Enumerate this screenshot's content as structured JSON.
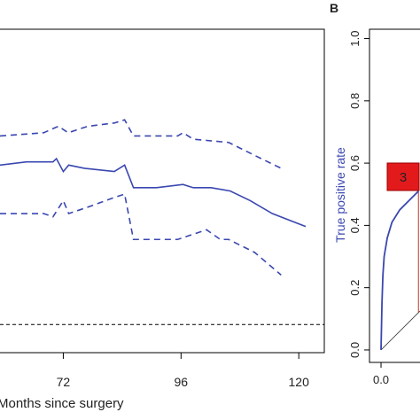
{
  "chart_data": [
    {
      "type": "line",
      "xlabel": "Months since surgery",
      "xlim": [
        59.1,
        125.2
      ],
      "xticks": [
        72,
        96,
        120
      ],
      "ylim": [
        0,
        1
      ],
      "series": [
        {
          "color": "#3a47b0",
          "dash": false,
          "x": [
            59.1,
            64.5,
            69.9,
            70.6,
            72,
            73.1,
            76.3,
            82.4,
            84.5,
            86.3,
            91,
            96.4,
            98.5,
            102.1,
            106,
            110.1,
            114.6,
            121.4
          ],
          "values": [
            0.58,
            0.59,
            0.59,
            0.6,
            0.56,
            0.58,
            0.57,
            0.56,
            0.58,
            0.51,
            0.51,
            0.52,
            0.51,
            0.51,
            0.5,
            0.47,
            0.43,
            0.39
          ]
        },
        {
          "color": "#3a47b0",
          "dash": true,
          "x": [
            59.1,
            68,
            71,
            73,
            77,
            82.4,
            84.5,
            86.3,
            95.3,
            96.4,
            98.5,
            105.7,
            111,
            116.4
          ],
          "values": [
            0.67,
            0.68,
            0.7,
            0.68,
            0.7,
            0.71,
            0.72,
            0.67,
            0.67,
            0.68,
            0.66,
            0.65,
            0.61,
            0.57
          ]
        },
        {
          "color": "#3a47b0",
          "dash": true,
          "x": [
            59.1,
            68,
            69.9,
            72,
            73.1,
            77,
            82.4,
            84.5,
            86.3,
            95.3,
            101.2,
            104,
            105.7,
            111,
            116.4
          ],
          "values": [
            0.43,
            0.43,
            0.42,
            0.47,
            0.43,
            0.45,
            0.48,
            0.49,
            0.35,
            0.35,
            0.38,
            0.35,
            0.35,
            0.31,
            0.24
          ]
        }
      ],
      "reference_line": {
        "value": 0.087,
        "color": "#000000"
      }
    },
    {
      "type": "roc",
      "panel": "B",
      "ylabel": "True positive rate",
      "ylabel_color": "#3a47b0",
      "xlim": [
        -0.037,
        0.125
      ],
      "xticks": [
        {
          "value": 0,
          "label": "0.0"
        }
      ],
      "ylim": [
        -0.04,
        1.03
      ],
      "yticks": [
        {
          "value": 0,
          "label": "0.0"
        },
        0.2,
        0.4,
        0.6,
        0.8,
        {
          "value": 1,
          "label": "1.0"
        }
      ],
      "color": "#3a47b0",
      "x": [
        0,
        0.003,
        0.006,
        0.01,
        0.02,
        0.035,
        0.06,
        0.09,
        0.12
      ],
      "values": [
        0,
        0.15,
        0.24,
        0.3,
        0.36,
        0.41,
        0.45,
        0.48,
        0.51
      ],
      "cutoff": {
        "x": 0.12,
        "y": [
          0.12,
          0.51
        ],
        "color": "#c0392b"
      },
      "annotation": {
        "text": "3",
        "color": "#e31a1c"
      }
    }
  ]
}
